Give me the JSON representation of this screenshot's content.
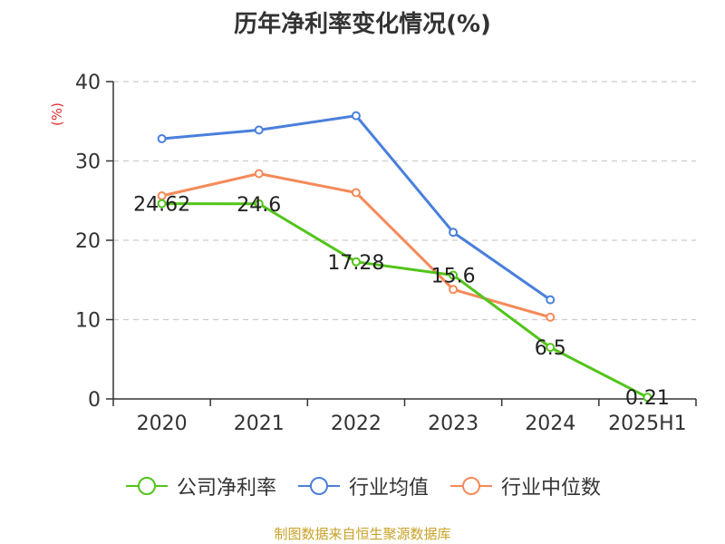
{
  "chart_data": {
    "type": "line",
    "title": "历年净利率变化情况(%)",
    "ylabel": "(%)",
    "categories": [
      "2020",
      "2021",
      "2022",
      "2023",
      "2024",
      "2025H1"
    ],
    "ylim": [
      0,
      40
    ],
    "yticks": [
      0,
      10,
      20,
      30,
      40
    ],
    "grid": true,
    "legend_position": "bottom",
    "series": [
      {
        "name": "公司净利率",
        "color": "#52c41a",
        "values": [
          24.62,
          24.6,
          17.28,
          15.6,
          6.5,
          0.21
        ],
        "show_labels": true
      },
      {
        "name": "行业均值",
        "color": "#4a7fdc",
        "values": [
          32.8,
          33.9,
          35.7,
          21.0,
          12.5,
          null
        ],
        "show_labels": false
      },
      {
        "name": "行业中位数",
        "color": "#f48a59",
        "values": [
          25.6,
          28.4,
          26.0,
          13.8,
          10.3,
          null
        ],
        "show_labels": false
      }
    ]
  },
  "source_note": "制图数据来自恒生聚源数据库"
}
